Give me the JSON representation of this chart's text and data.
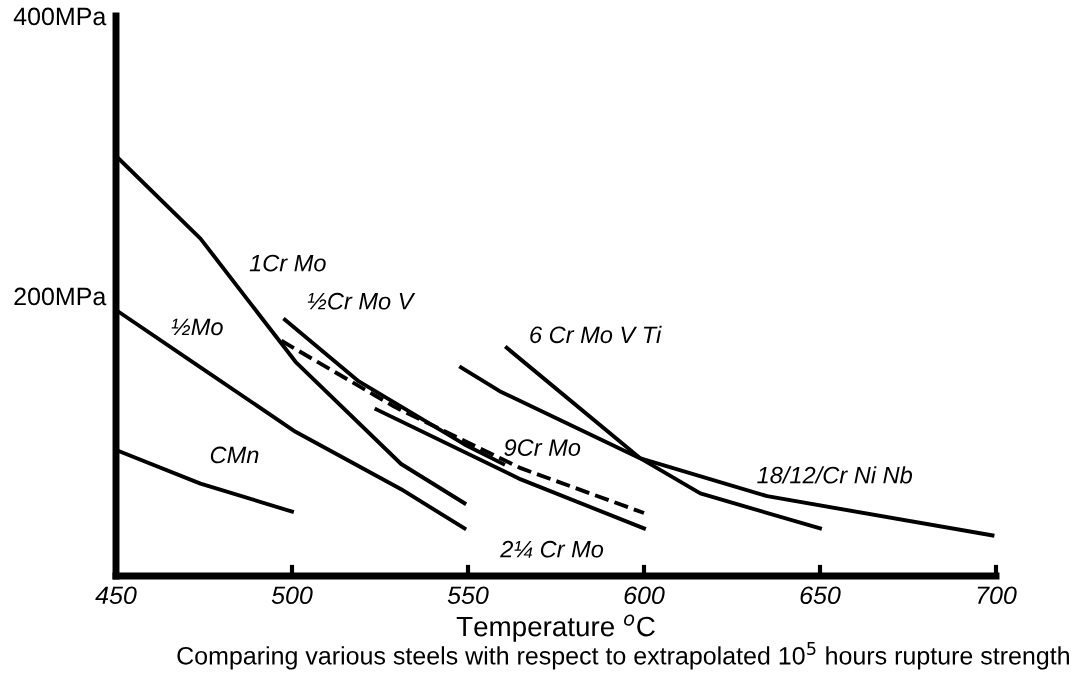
{
  "chart_data": {
    "type": "line",
    "xlabel": "Temperature $^{o}$C",
    "xlim": [
      450,
      700
    ],
    "xticks": [
      450,
      500,
      550,
      600,
      650,
      700
    ],
    "ylim": [
      0,
      400
    ],
    "yticks": [
      {
        "value": 200,
        "label": "200MPa"
      },
      {
        "value": 400,
        "label": "400MPa"
      }
    ],
    "grid": false,
    "legend": false,
    "marker": "none",
    "series": [
      {
        "name": "1Cr Mo",
        "color": "#000000",
        "x": [
          450,
          474,
          501,
          531,
          549
        ],
        "values": [
          300,
          241,
          153,
          80,
          52
        ]
      },
      {
        "name": "½Mo",
        "color": "#000000",
        "x": [
          450,
          474,
          501,
          531,
          549
        ],
        "values": [
          190,
          149,
          103,
          62,
          34
        ]
      },
      {
        "name": "CMn",
        "color": "#000000",
        "x": [
          450,
          474,
          500
        ],
        "values": [
          90,
          66,
          46
        ]
      },
      {
        "name": "½Cr Mo V",
        "color": "#000000",
        "x": [
          498,
          519,
          549,
          560
        ],
        "values": [
          183,
          139,
          94,
          80
        ]
      },
      {
        "name": "2¼ Cr Mo",
        "color": "#000000",
        "x": [
          524,
          565,
          600
        ],
        "values": [
          119,
          69,
          34
        ]
      },
      {
        "name": "9Cr Mo",
        "color": "#000000",
        "line_style": "dashed",
        "x": [
          497,
          529,
          565,
          600
        ],
        "values": [
          168,
          121,
          77,
          45
        ]
      },
      {
        "name": "6 Cr Mo V Ti",
        "color": "#000000",
        "x": [
          561,
          599,
          616,
          650
        ],
        "values": [
          163,
          84,
          59,
          34
        ]
      },
      {
        "name": "18/12/Cr Ni Nb",
        "color": "#000000",
        "x": [
          548,
          559,
          599,
          635,
          699
        ],
        "values": [
          149,
          132,
          84,
          57,
          29
        ]
      }
    ],
    "annotations": [
      "Comparing various steels with respect to extrapolated 10$^{5}$ hours rupture strength"
    ]
  }
}
